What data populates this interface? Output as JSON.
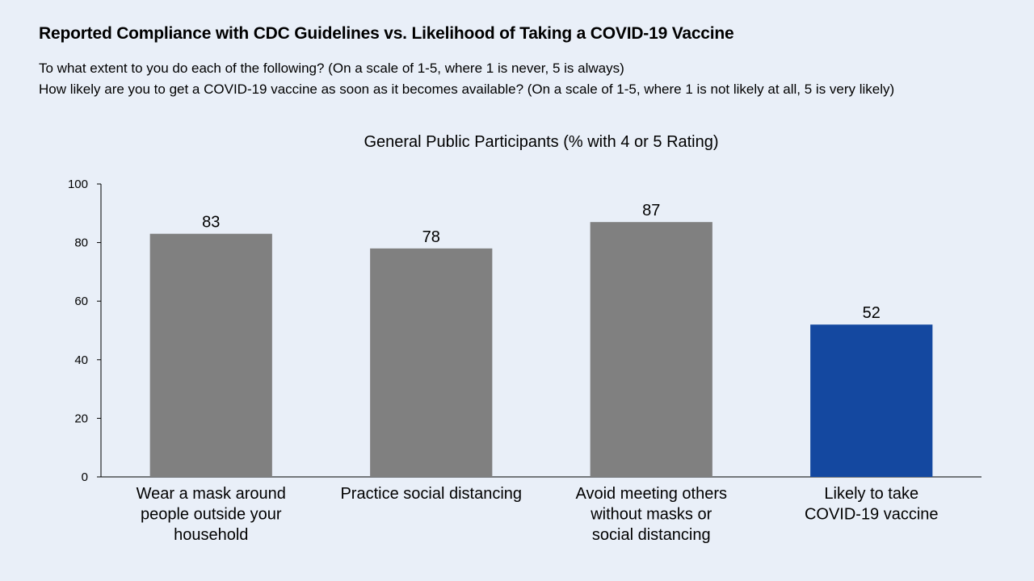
{
  "header": {
    "title": "Reported Compliance with CDC Guidelines vs. Likelihood of Taking a COVID-19 Vaccine",
    "subtitle_line1": "To what extent to you do each of the following? (On a scale of 1-5, where 1 is never, 5 is always)",
    "subtitle_line2": "How likely are you to get a COVID-19 vaccine as soon as it becomes available? (On a scale of 1-5, where 1 is not likely at all, 5 is very likely)"
  },
  "chart_data": {
    "type": "bar",
    "title": "General Public Participants (% with 4 or 5 Rating)",
    "categories": [
      [
        "Wear a mask around",
        "people outside your",
        "household"
      ],
      [
        "Practice social distancing"
      ],
      [
        "Avoid meeting others",
        "without masks or",
        "social distancing"
      ],
      [
        "Likely to take",
        "COVID-19 vaccine"
      ]
    ],
    "values": [
      83,
      78,
      87,
      52
    ],
    "bar_colors": [
      "#808080",
      "#808080",
      "#808080",
      "#1448a0"
    ],
    "ylim": [
      0,
      100
    ],
    "yticks": [
      0,
      20,
      40,
      60,
      80,
      100
    ],
    "xlabel": "",
    "ylabel": "",
    "grid": false,
    "data_labels": true
  }
}
